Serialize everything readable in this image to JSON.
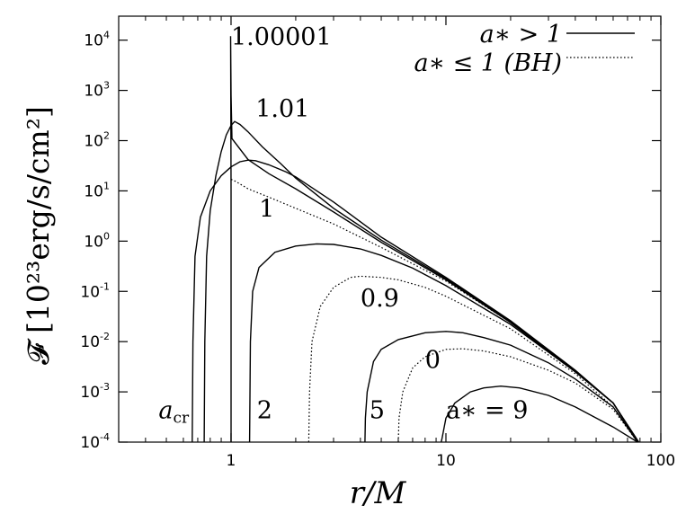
{
  "chart_data": {
    "type": "line",
    "xscale": "log",
    "yscale": "log",
    "xlim": [
      0.3,
      100
    ],
    "ylim": [
      0.0001,
      30000
    ],
    "xticks": [
      {
        "value": 1,
        "label": "1"
      },
      {
        "value": 10,
        "label": "10"
      },
      {
        "value": 100,
        "label": "100"
      }
    ],
    "yticks": [
      {
        "value": 0.0001,
        "base": "10",
        "exp": "-4"
      },
      {
        "value": 0.001,
        "base": "10",
        "exp": "-3"
      },
      {
        "value": 0.01,
        "base": "10",
        "exp": "-2"
      },
      {
        "value": 0.1,
        "base": "10",
        "exp": "-1"
      },
      {
        "value": 1,
        "base": "10",
        "exp": "0"
      },
      {
        "value": 10,
        "base": "10",
        "exp": "1"
      },
      {
        "value": 100,
        "base": "10",
        "exp": "2"
      },
      {
        "value": 1000,
        "base": "10",
        "exp": "3"
      },
      {
        "value": 10000,
        "base": "10",
        "exp": "4"
      }
    ],
    "xlabel": "r/M",
    "ylabel": "𝓕 [10²³erg/s/cm²]",
    "legend": {
      "placement": "top-right",
      "entries": [
        {
          "label": "a∗ > 1",
          "style": "solid"
        },
        {
          "label": "a∗ ≤ 1 (BH)",
          "style": "dotted"
        }
      ]
    },
    "series": [
      {
        "label": "1.00001",
        "style": "solid",
        "points": [
          [
            1.0,
            0.0001
          ],
          [
            1.0,
            10
          ],
          [
            0.998,
            200
          ],
          [
            0.995,
            12000
          ],
          [
            1.0,
            800
          ],
          [
            1.01,
            110
          ],
          [
            1.2,
            42
          ],
          [
            1.5,
            22
          ],
          [
            2,
            11
          ],
          [
            3,
            3.8
          ],
          [
            5,
            0.95
          ],
          [
            10,
            0.17
          ],
          [
            20,
            0.024
          ],
          [
            40,
            0.0025
          ],
          [
            60,
            0.0006
          ],
          [
            78,
            0.0001
          ]
        ]
      },
      {
        "label": "1.01",
        "style": "solid",
        "points": [
          [
            0.75,
            0.0001
          ],
          [
            0.755,
            0.01
          ],
          [
            0.77,
            0.5
          ],
          [
            0.8,
            4
          ],
          [
            0.85,
            20
          ],
          [
            0.9,
            60
          ],
          [
            0.95,
            130
          ],
          [
            1.0,
            200
          ],
          [
            1.04,
            240
          ],
          [
            1.1,
            210
          ],
          [
            1.2,
            150
          ],
          [
            1.4,
            75
          ],
          [
            1.7,
            35
          ],
          [
            2,
            18
          ],
          [
            3,
            4.5
          ],
          [
            5,
            1.05
          ],
          [
            10,
            0.18
          ],
          [
            20,
            0.025
          ],
          [
            40,
            0.0026
          ],
          [
            60,
            0.0006
          ],
          [
            78,
            0.0001
          ]
        ]
      },
      {
        "label": "a_cr",
        "style": "solid",
        "points": [
          [
            0.66,
            0.0001
          ],
          [
            0.665,
            0.01
          ],
          [
            0.68,
            0.5
          ],
          [
            0.72,
            3
          ],
          [
            0.8,
            10
          ],
          [
            0.9,
            20
          ],
          [
            1.0,
            30
          ],
          [
            1.1,
            38
          ],
          [
            1.2,
            41
          ],
          [
            1.3,
            40
          ],
          [
            1.5,
            33
          ],
          [
            1.8,
            24
          ],
          [
            2,
            19
          ],
          [
            3,
            6
          ],
          [
            5,
            1.2
          ],
          [
            10,
            0.19
          ],
          [
            20,
            0.026
          ],
          [
            40,
            0.0027
          ],
          [
            60,
            0.0006
          ],
          [
            79,
            0.0001
          ]
        ]
      },
      {
        "label": "1",
        "style": "dotted",
        "points": [
          [
            1.0,
            17
          ],
          [
            1.05,
            15.5
          ],
          [
            1.2,
            11
          ],
          [
            1.5,
            7.5
          ],
          [
            2,
            4.5
          ],
          [
            3,
            2.2
          ],
          [
            5,
            0.75
          ],
          [
            10,
            0.16
          ],
          [
            20,
            0.024
          ],
          [
            40,
            0.0026
          ],
          [
            60,
            0.0006
          ],
          [
            79,
            0.0001
          ]
        ]
      },
      {
        "label": "2",
        "style": "solid",
        "points": [
          [
            1.22,
            0.0001
          ],
          [
            1.23,
            0.01
          ],
          [
            1.26,
            0.1
          ],
          [
            1.35,
            0.3
          ],
          [
            1.6,
            0.6
          ],
          [
            2,
            0.8
          ],
          [
            2.5,
            0.88
          ],
          [
            3,
            0.86
          ],
          [
            4,
            0.7
          ],
          [
            5,
            0.52
          ],
          [
            7,
            0.29
          ],
          [
            10,
            0.13
          ],
          [
            20,
            0.022
          ],
          [
            40,
            0.0025
          ],
          [
            60,
            0.0006
          ],
          [
            78,
            0.0001
          ]
        ]
      },
      {
        "label": "0.9",
        "style": "dotted",
        "points": [
          [
            2.3,
            0.0001
          ],
          [
            2.32,
            0.001
          ],
          [
            2.38,
            0.01
          ],
          [
            2.6,
            0.05
          ],
          [
            3,
            0.12
          ],
          [
            3.6,
            0.19
          ],
          [
            4,
            0.2
          ],
          [
            5,
            0.19
          ],
          [
            6,
            0.17
          ],
          [
            8,
            0.12
          ],
          [
            10,
            0.08
          ],
          [
            20,
            0.018
          ],
          [
            40,
            0.0023
          ],
          [
            60,
            0.0005
          ],
          [
            78,
            0.0001
          ]
        ]
      },
      {
        "label": "5",
        "style": "solid",
        "points": [
          [
            4.2,
            0.0001
          ],
          [
            4.22,
            0.0003
          ],
          [
            4.3,
            0.001
          ],
          [
            4.6,
            0.004
          ],
          [
            5,
            0.007
          ],
          [
            6,
            0.011
          ],
          [
            8,
            0.015
          ],
          [
            10,
            0.016
          ],
          [
            12,
            0.015
          ],
          [
            15,
            0.012
          ],
          [
            20,
            0.0085
          ],
          [
            30,
            0.0038
          ],
          [
            40,
            0.0018
          ],
          [
            60,
            0.0005
          ],
          [
            78,
            0.0001
          ]
        ]
      },
      {
        "label": "0",
        "style": "dotted",
        "points": [
          [
            6.0,
            0.0001
          ],
          [
            6.05,
            0.0003
          ],
          [
            6.3,
            0.001
          ],
          [
            7,
            0.003
          ],
          [
            8,
            0.005
          ],
          [
            10,
            0.007
          ],
          [
            12,
            0.0072
          ],
          [
            15,
            0.0065
          ],
          [
            20,
            0.005
          ],
          [
            30,
            0.0027
          ],
          [
            40,
            0.0015
          ],
          [
            60,
            0.00045
          ],
          [
            78,
            0.0001
          ]
        ]
      },
      {
        "label": "a∗ = 9",
        "style": "solid",
        "points": [
          [
            9.5,
            0.0001
          ],
          [
            9.6,
            0.00012
          ],
          [
            10,
            0.0003
          ],
          [
            11,
            0.0006
          ],
          [
            13,
            0.001
          ],
          [
            15,
            0.0012
          ],
          [
            18,
            0.0013
          ],
          [
            22,
            0.0012
          ],
          [
            30,
            0.00085
          ],
          [
            40,
            0.0005
          ],
          [
            60,
            0.0002
          ],
          [
            78,
            0.0001
          ]
        ]
      }
    ],
    "annotations": [
      {
        "text": "1.00001",
        "x": 1.0,
        "y": 8000
      },
      {
        "text": "1.01",
        "x": 1.3,
        "y": 300
      },
      {
        "text": "1",
        "x": 1.35,
        "y": 3
      },
      {
        "text": "0.9",
        "x": 4.0,
        "y": 0.05
      },
      {
        "text": "a_cr",
        "x": 0.46,
        "y": 0.0003
      },
      {
        "text": "2",
        "x": 1.32,
        "y": 0.0003
      },
      {
        "text": "5",
        "x": 4.4,
        "y": 0.0003
      },
      {
        "text": "0",
        "x": 8.0,
        "y": 0.003
      },
      {
        "text": "a∗ = 9",
        "x": 10.0,
        "y": 0.0003
      }
    ],
    "grid": false
  }
}
